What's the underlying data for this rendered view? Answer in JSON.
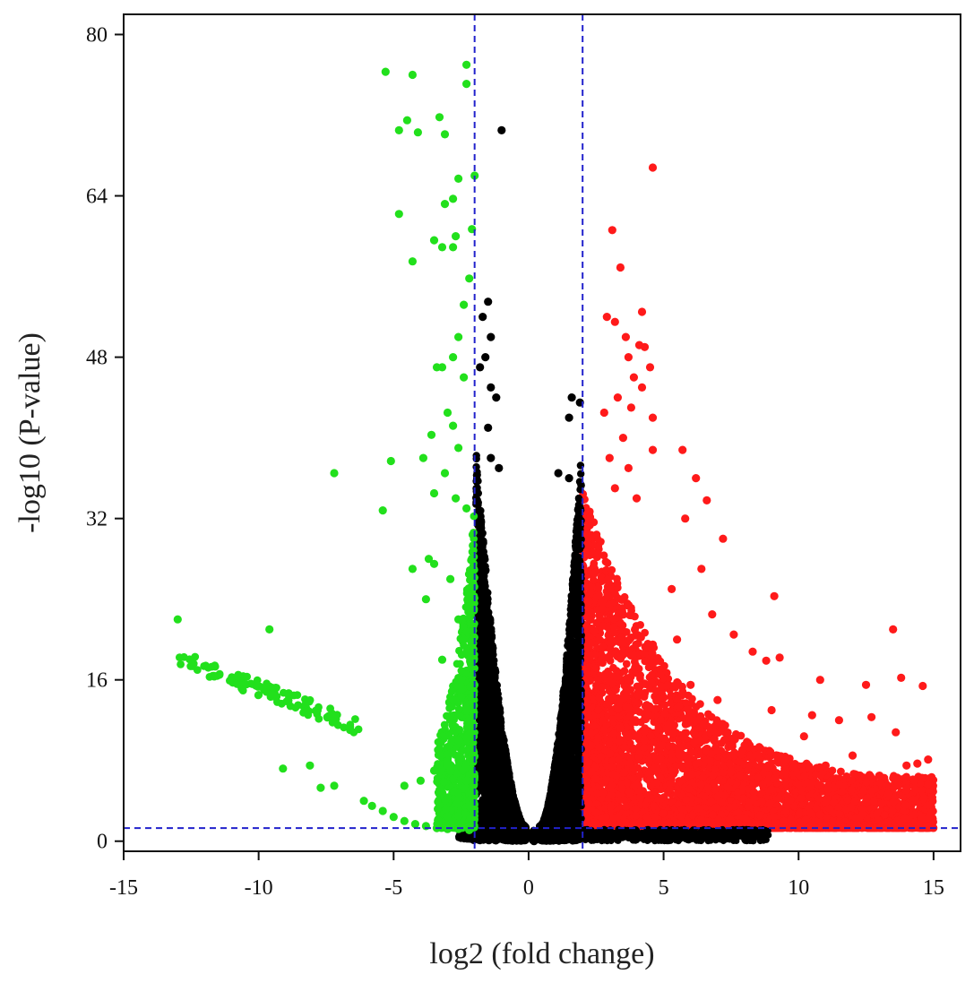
{
  "chart_data": {
    "type": "scatter",
    "title": "",
    "xlabel": "log2 (fold change)",
    "ylabel": "-log10 (P-value)",
    "xlim": [
      -15,
      16
    ],
    "ylim": [
      -1,
      82
    ],
    "x_ticks": [
      -15,
      -10,
      -5,
      0,
      5,
      10,
      15
    ],
    "y_ticks": [
      0,
      16,
      32,
      48,
      64,
      80
    ],
    "grid": false,
    "legend": "none",
    "thresholds": {
      "log2fc": [
        -2,
        2
      ],
      "neg_log10_p": 1.3
    },
    "colors": {
      "down": "#22e01c",
      "up": "#ff1a1a",
      "ns": "#000000",
      "threshold_line": "#2222cc"
    },
    "series": [
      {
        "category": "down",
        "points": [
          [
            -5.3,
            76.3
          ],
          [
            -4.3,
            76.0
          ],
          [
            -2.3,
            77.0
          ],
          [
            -2.3,
            75.1
          ],
          [
            -4.5,
            71.5
          ],
          [
            -4.8,
            70.5
          ],
          [
            -4.1,
            70.3
          ],
          [
            -3.3,
            71.8
          ],
          [
            -3.1,
            70.1
          ],
          [
            -2.0,
            66.0
          ],
          [
            -2.6,
            65.7
          ],
          [
            -2.8,
            63.7
          ],
          [
            -3.1,
            63.2
          ],
          [
            -4.8,
            62.2
          ],
          [
            -2.1,
            60.7
          ],
          [
            -2.7,
            60.0
          ],
          [
            -3.5,
            59.6
          ],
          [
            -2.8,
            58.9
          ],
          [
            -3.2,
            58.9
          ],
          [
            -4.3,
            57.5
          ],
          [
            -2.2,
            55.8
          ],
          [
            -2.4,
            53.2
          ],
          [
            -2.6,
            50.0
          ],
          [
            -3.2,
            47.0
          ],
          [
            -3.4,
            47.0
          ],
          [
            -2.8,
            48.0
          ],
          [
            -2.4,
            46.0
          ],
          [
            -3.0,
            42.5
          ],
          [
            -2.8,
            41.2
          ],
          [
            -3.6,
            40.3
          ],
          [
            -2.6,
            39.0
          ],
          [
            -3.9,
            38.0
          ],
          [
            -3.1,
            36.5
          ],
          [
            -3.5,
            34.5
          ],
          [
            -2.7,
            34.0
          ],
          [
            -2.3,
            33.0
          ],
          [
            -3.7,
            28.0
          ],
          [
            -3.5,
            27.5
          ],
          [
            -2.9,
            26.0
          ],
          [
            -4.3,
            27.0
          ],
          [
            -3.8,
            24.0
          ],
          [
            -2.6,
            22.0
          ],
          [
            -2.4,
            20.0
          ],
          [
            -3.2,
            18.0
          ],
          [
            -2.5,
            16.0
          ],
          [
            -2.8,
            14.0
          ],
          [
            -2.2,
            12.0
          ],
          [
            -2.6,
            10.0
          ],
          [
            -3.0,
            8.0
          ],
          [
            -2.3,
            6.0
          ],
          [
            -3.5,
            7.0
          ],
          [
            -4.0,
            6.0
          ],
          [
            -4.6,
            5.5
          ],
          [
            -2.2,
            3.5
          ],
          [
            -2.6,
            2.5
          ],
          [
            -5.1,
            37.7
          ],
          [
            -7.2,
            36.5
          ],
          [
            -5.4,
            32.8
          ],
          [
            -13.0,
            22.0
          ],
          [
            -9.6,
            21.0
          ],
          [
            -8.1,
            7.5
          ],
          [
            -9.1,
            7.2
          ],
          [
            -7.7,
            5.3
          ],
          [
            -7.2,
            5.5
          ],
          [
            -6.1,
            4.0
          ],
          [
            -5.8,
            3.5
          ],
          [
            -5.4,
            3.0
          ],
          [
            -5.0,
            2.4
          ],
          [
            -4.6,
            2.0
          ],
          [
            -4.2,
            1.7
          ],
          [
            -3.8,
            1.5
          ],
          [
            -3.4,
            1.3
          ],
          [
            -3.0,
            1.2
          ],
          [
            -2.6,
            1.2
          ],
          [
            -2.2,
            1.1
          ]
        ],
        "trend_band": {
          "x": [
            -13.0,
            -6.2
          ],
          "y": [
            18.2,
            11.3
          ]
        }
      },
      {
        "category": "up",
        "points": [
          [
            4.6,
            66.8
          ],
          [
            3.1,
            60.6
          ],
          [
            3.4,
            56.9
          ],
          [
            4.2,
            52.5
          ],
          [
            2.9,
            52.0
          ],
          [
            3.2,
            51.5
          ],
          [
            3.6,
            50.0
          ],
          [
            4.1,
            49.2
          ],
          [
            4.3,
            49.0
          ],
          [
            3.7,
            48.0
          ],
          [
            4.5,
            47.0
          ],
          [
            3.9,
            46.0
          ],
          [
            4.2,
            45.0
          ],
          [
            3.3,
            44.0
          ],
          [
            3.8,
            43.0
          ],
          [
            2.8,
            42.5
          ],
          [
            4.6,
            42.0
          ],
          [
            3.5,
            40.0
          ],
          [
            3.0,
            38.0
          ],
          [
            4.6,
            38.8
          ],
          [
            5.7,
            38.8
          ],
          [
            3.7,
            37.0
          ],
          [
            6.2,
            36.0
          ],
          [
            6.6,
            33.8
          ],
          [
            5.8,
            32.0
          ],
          [
            3.2,
            35.0
          ],
          [
            4.0,
            34.0
          ],
          [
            7.2,
            30.0
          ],
          [
            6.4,
            27.0
          ],
          [
            5.3,
            25.0
          ],
          [
            9.1,
            24.3
          ],
          [
            6.8,
            22.5
          ],
          [
            7.6,
            20.5
          ],
          [
            5.5,
            20.0
          ],
          [
            4.6,
            19.5
          ],
          [
            8.3,
            18.8
          ],
          [
            9.3,
            18.2
          ],
          [
            8.8,
            17.9
          ],
          [
            10.8,
            16.0
          ],
          [
            13.5,
            21.0
          ],
          [
            12.5,
            15.5
          ],
          [
            13.8,
            16.2
          ],
          [
            14.6,
            15.4
          ],
          [
            11.5,
            12.0
          ],
          [
            12.7,
            12.3
          ],
          [
            10.2,
            10.4
          ],
          [
            13.6,
            10.8
          ],
          [
            14.4,
            7.7
          ],
          [
            14.8,
            8.1
          ],
          [
            9.0,
            13.0
          ],
          [
            10.5,
            12.5
          ],
          [
            7.0,
            14.0
          ],
          [
            6.0,
            15.5
          ],
          [
            12.0,
            8.5
          ],
          [
            11.0,
            7.5
          ],
          [
            8.0,
            9.5
          ],
          [
            9.5,
            8.0
          ],
          [
            14.0,
            7.5
          ],
          [
            14.3,
            6.0
          ],
          [
            13.0,
            6.5
          ]
        ],
        "cloud": {
          "x": [
            2.0,
            15.0
          ],
          "y_max_at_x_min": 35.0,
          "y_max_at_x_max": 5.0
        }
      },
      {
        "category": "ns",
        "points": [
          [
            -1.0,
            70.5
          ],
          [
            -1.5,
            53.5
          ],
          [
            -1.7,
            52.0
          ],
          [
            -1.4,
            50.0
          ],
          [
            -1.6,
            48.0
          ],
          [
            -1.8,
            47.0
          ],
          [
            -1.4,
            45.0
          ],
          [
            -1.2,
            44.0
          ],
          [
            1.6,
            44.0
          ],
          [
            1.9,
            43.5
          ],
          [
            1.5,
            42.0
          ],
          [
            -1.5,
            41.0
          ],
          [
            -1.4,
            38.0
          ],
          [
            -1.1,
            37.0
          ],
          [
            1.1,
            36.5
          ],
          [
            1.5,
            36.0
          ],
          [
            0.2,
            0.0
          ],
          [
            0.5,
            0.6
          ],
          [
            -0.3,
            0.5
          ],
          [
            1.1,
            0.6
          ]
        ],
        "envelope": {
          "left": {
            "x": [
              -1.95,
              -0.1
            ],
            "y_max": [
              38.0,
              1.5
            ]
          },
          "right": {
            "x": [
              0.4,
              1.95
            ],
            "y_max": [
              1.5,
              37.0
            ]
          }
        }
      }
    ]
  }
}
